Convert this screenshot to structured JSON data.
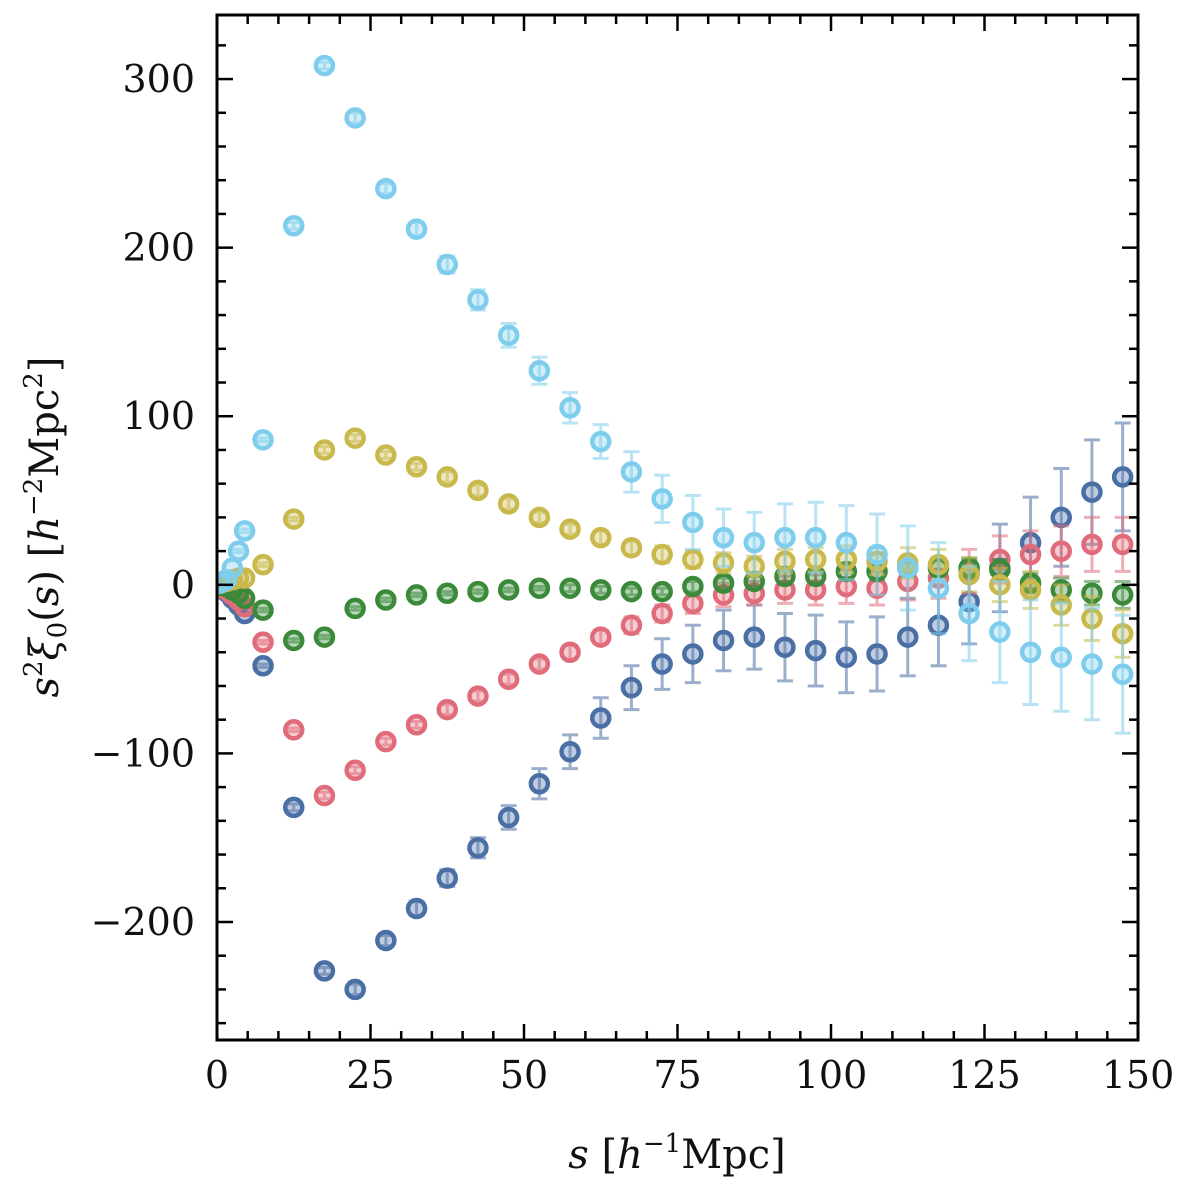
{
  "chart_data": {
    "type": "scatter",
    "title": "",
    "xlabel": "s [h^-1 Mpc]",
    "ylabel": "s^2 ξ0(s) [h^-2 Mpc^2]",
    "xlim": [
      0,
      150
    ],
    "ylim": [
      -270,
      338
    ],
    "xticks": [
      0,
      25,
      50,
      75,
      100,
      125,
      150
    ],
    "yticks": [
      -200,
      -100,
      0,
      100,
      200,
      300
    ],
    "xtick_labels": [
      "0",
      "25",
      "50",
      "75",
      "100",
      "125",
      "150"
    ],
    "ytick_labels": [
      "−200",
      "−100",
      "0",
      "100",
      "200",
      "300"
    ],
    "x_minor_step": 5,
    "y_minor_step": 20,
    "grid": false,
    "legend": "none",
    "marker": "open-circle",
    "x": [
      0.5,
      1.5,
      2.5,
      3.5,
      4.5,
      7.5,
      12.5,
      17.5,
      22.5,
      27.5,
      32.5,
      37.5,
      42.5,
      47.5,
      52.5,
      57.5,
      62.5,
      67.5,
      72.5,
      77.5,
      82.5,
      87.5,
      92.5,
      97.5,
      102.5,
      107.5,
      112.5,
      117.5,
      122.5,
      127.5,
      132.5,
      137.5,
      142.5,
      147.5
    ],
    "series": [
      {
        "name": "series-dark-blue",
        "color": "#4a6fa5",
        "values": [
          -1,
          -4,
          -8,
          -12,
          -17,
          -48,
          -132,
          -229,
          -240,
          -211,
          -192,
          -174,
          -156,
          -138,
          -118,
          -99,
          -79,
          -61,
          -47,
          -41,
          -33,
          -31,
          -37,
          -39,
          -43,
          -41,
          -31,
          -24,
          -10,
          10,
          25,
          40,
          55,
          64
        ],
        "errors": [
          0,
          0,
          0,
          0,
          1,
          1,
          2,
          2,
          3,
          3,
          4,
          5,
          6,
          7,
          9,
          10,
          12,
          13,
          15,
          17,
          18,
          19,
          20,
          21,
          21,
          22,
          23,
          24,
          25,
          26,
          27,
          29,
          31,
          32
        ]
      },
      {
        "name": "series-red",
        "color": "#e06c7b",
        "values": [
          -1,
          -3,
          -6,
          -9,
          -13,
          -34,
          -86,
          -125,
          -110,
          -93,
          -83,
          -74,
          -66,
          -56,
          -47,
          -40,
          -31,
          -24,
          -17,
          -11,
          -6,
          -5,
          -3,
          -3,
          -1,
          -2,
          2,
          4,
          8,
          15,
          18,
          20,
          24,
          24
        ],
        "errors": [
          0,
          0,
          0,
          0,
          1,
          1,
          1,
          2,
          2,
          2,
          2,
          3,
          3,
          3,
          3,
          4,
          4,
          5,
          5,
          6,
          7,
          7,
          8,
          9,
          10,
          10,
          11,
          12,
          13,
          14,
          14,
          15,
          16,
          16
        ]
      },
      {
        "name": "series-green",
        "color": "#3a8a3a",
        "values": [
          0,
          -1,
          -3,
          -5,
          -8,
          -15,
          -33,
          -31,
          -14,
          -9,
          -6,
          -5,
          -4,
          -3,
          -2,
          -2,
          -3,
          -4,
          -4,
          -1,
          1,
          2,
          5,
          5,
          8,
          8,
          10,
          10,
          10,
          9,
          1,
          -3,
          -5,
          -6
        ],
        "errors": [
          0,
          0,
          0,
          0,
          0,
          1,
          1,
          1,
          1,
          1,
          1,
          1,
          1,
          1,
          1,
          2,
          2,
          2,
          2,
          3,
          3,
          3,
          4,
          4,
          4,
          5,
          5,
          5,
          6,
          6,
          6,
          7,
          7,
          8
        ]
      },
      {
        "name": "series-yellow",
        "color": "#c9b94c",
        "values": [
          1,
          2,
          3,
          4,
          4,
          12,
          39,
          80,
          87,
          77,
          70,
          64,
          56,
          48,
          40,
          33,
          28,
          22,
          18,
          15,
          13,
          11,
          14,
          15,
          15,
          14,
          13,
          12,
          6,
          0,
          -3,
          -12,
          -20,
          -29
        ],
        "errors": [
          0,
          0,
          0,
          0,
          0,
          1,
          1,
          2,
          2,
          2,
          2,
          3,
          3,
          3,
          3,
          3,
          4,
          4,
          5,
          5,
          6,
          6,
          7,
          7,
          8,
          8,
          9,
          9,
          10,
          10,
          11,
          12,
          13,
          14
        ]
      },
      {
        "name": "series-light-blue",
        "color": "#7fcdec",
        "values": [
          1,
          3,
          10,
          20,
          32,
          86,
          213,
          308,
          277,
          235,
          211,
          190,
          169,
          148,
          127,
          105,
          85,
          67,
          51,
          37,
          28,
          25,
          28,
          28,
          25,
          18,
          10,
          -2,
          -17,
          -28,
          -40,
          -43,
          -47,
          -53
        ],
        "errors": [
          0,
          0,
          0,
          1,
          1,
          1,
          2,
          2,
          3,
          3,
          4,
          5,
          6,
          7,
          8,
          9,
          10,
          12,
          14,
          16,
          17,
          18,
          20,
          21,
          22,
          24,
          25,
          27,
          28,
          30,
          31,
          32,
          33,
          35
        ]
      }
    ]
  }
}
